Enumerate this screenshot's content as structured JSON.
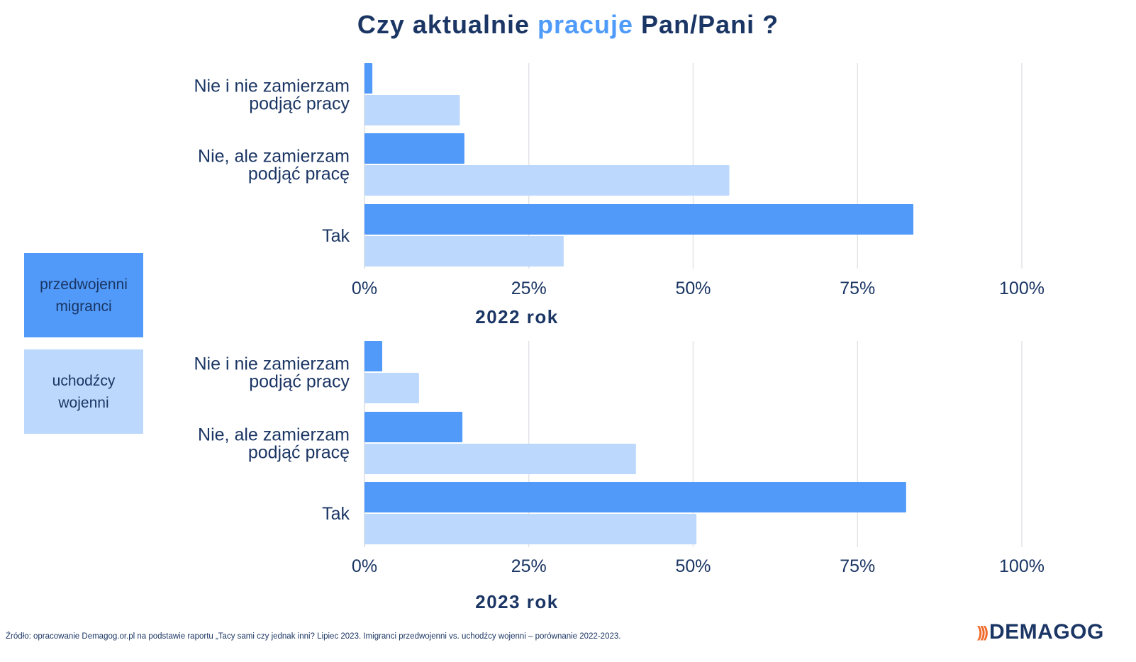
{
  "title": {
    "before": "Czy aktualnie ",
    "highlight": "pracuje",
    "after": " Pan/Pani ?"
  },
  "legend": [
    {
      "label": "przedwojenni migranci",
      "color": "#519af9"
    },
    {
      "label": "uchodźcy wojenni",
      "color": "#bcd8fc"
    }
  ],
  "chart_data": [
    {
      "type": "bar",
      "orientation": "horizontal",
      "xlabel": "2022 rok",
      "categories": [
        [
          "Nie i nie zamierzam",
          "podjąć pracy"
        ],
        [
          "Nie, ale zamierzam",
          "podjąć pracę"
        ],
        [
          "Tak"
        ]
      ],
      "series": [
        {
          "name": "przedwojenni migranci",
          "values": [
            1.2,
            15.2,
            83.5
          ],
          "color": "#519af9"
        },
        {
          "name": "uchodźcy wojenni",
          "values": [
            14.5,
            55.5,
            30.3
          ],
          "color": "#bcd8fc"
        }
      ],
      "xlim": [
        0,
        100
      ],
      "ticks": [
        "0%",
        "25%",
        "50%",
        "75%",
        "100%"
      ],
      "tick_values": [
        0,
        25,
        50,
        75,
        100
      ],
      "grid": true
    },
    {
      "type": "bar",
      "orientation": "horizontal",
      "xlabel": "2023 rok",
      "categories": [
        [
          "Nie i nie zamierzam",
          "podjąć pracy"
        ],
        [
          "Nie, ale zamierzam",
          "podjąć pracę"
        ],
        [
          "Tak"
        ]
      ],
      "series": [
        {
          "name": "przedwojenni migranci",
          "values": [
            2.7,
            14.9,
            82.4
          ],
          "color": "#519af9"
        },
        {
          "name": "uchodźcy wojenni",
          "values": [
            8.3,
            41.3,
            50.5
          ],
          "color": "#bcd8fc"
        }
      ],
      "xlim": [
        0,
        100
      ],
      "ticks": [
        "0%",
        "25%",
        "50%",
        "75%",
        "100%"
      ],
      "tick_values": [
        0,
        25,
        50,
        75,
        100
      ],
      "grid": true
    }
  ],
  "source": "Źródło: opracowanie Demagog.or.pl na podstawie raportu „Tacy sami czy jednak inni? Lipiec 2023. Imigranci przedwojenni vs. uchodźcy wojenni – porównanie 2022-2023.",
  "logo": {
    "mark": ")))",
    "text": "DEMAGOG"
  }
}
